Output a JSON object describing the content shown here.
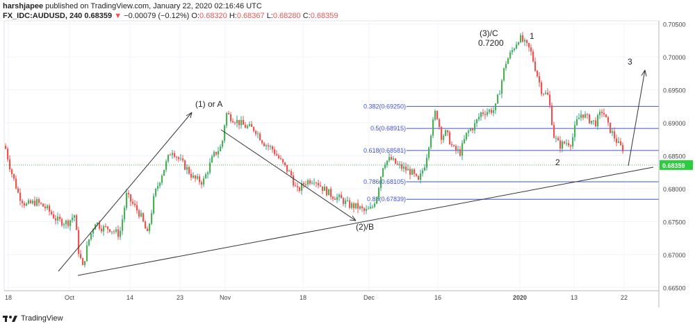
{
  "header": {
    "line1_user": "harshjapee",
    "line1_rest": " published on TradingView.com, January 22, 2020 02:16:46 UTC",
    "symbol": "FX_IDC:AUDUSD, 240",
    "last": "0.68359",
    "change_arrow": "▼",
    "change": "−0.00079 (−0.12%)",
    "o_label": "O:",
    "o_val": "0.68320",
    "h_label": "H:",
    "h_val": "0.68367",
    "l_label": "L:",
    "l_val": "0.68280",
    "c_label": "C:",
    "c_val": "0.68359"
  },
  "footer": {
    "brand": "TradingView"
  },
  "colors": {
    "up": "#26a69a",
    "up_fill": "#4caf50",
    "down": "#ef5350",
    "fib_line": "#3f51d4",
    "fib_text": "#3f51d4",
    "price_line": "#4caf50",
    "price_label_bg": "#2ecc40",
    "trend": "#333333"
  },
  "chart_data": {
    "type": "candlestick",
    "x_ticks": [
      "18",
      "Oct",
      "14",
      "23",
      "Nov",
      "18",
      "Dec",
      "16",
      "2020",
      "13",
      "22"
    ],
    "y_ticks": [
      "0.70500",
      "0.70000",
      "0.69500",
      "0.69000",
      "0.68500",
      "0.68000",
      "0.67500",
      "0.67000",
      "0.66500"
    ],
    "ylim": [
      0.6645,
      0.7055
    ],
    "current_price": "0.68359",
    "fib_levels": [
      {
        "label": "0.382(0.69250)",
        "value": 0.6925
      },
      {
        "label": "0.5(0.68915)",
        "value": 0.68915
      },
      {
        "label": "0.618(0.68581)",
        "value": 0.68581
      },
      {
        "label": "0.786(0.68105)",
        "value": 0.68105
      },
      {
        "label": "0.88(0.67839)",
        "value": 0.67839
      }
    ],
    "annotations": [
      {
        "text": "(1) or A"
      },
      {
        "text": "(2)/B"
      },
      {
        "text": "(3)/C"
      },
      {
        "text": "0.7200"
      },
      {
        "text": "1"
      },
      {
        "text": "2"
      },
      {
        "text": "3"
      }
    ],
    "close_path": [
      [
        0,
        0.6865
      ],
      [
        8,
        0.683
      ],
      [
        20,
        0.679
      ],
      [
        30,
        0.6775
      ],
      [
        45,
        0.678
      ],
      [
        60,
        0.677
      ],
      [
        75,
        0.6752
      ],
      [
        90,
        0.6748
      ],
      [
        100,
        0.676
      ],
      [
        106,
        0.6705
      ],
      [
        112,
        0.668
      ],
      [
        120,
        0.672
      ],
      [
        130,
        0.675
      ],
      [
        140,
        0.674
      ],
      [
        150,
        0.674
      ],
      [
        165,
        0.673
      ],
      [
        175,
        0.679
      ],
      [
        185,
        0.6775
      ],
      [
        195,
        0.676
      ],
      [
        205,
        0.673
      ],
      [
        215,
        0.679
      ],
      [
        225,
        0.682
      ],
      [
        240,
        0.686
      ],
      [
        250,
        0.6845
      ],
      [
        262,
        0.683
      ],
      [
        272,
        0.6815
      ],
      [
        285,
        0.681
      ],
      [
        300,
        0.685
      ],
      [
        312,
        0.6865
      ],
      [
        318,
        0.6915
      ],
      [
        323,
        0.691
      ],
      [
        330,
        0.6905
      ],
      [
        345,
        0.6895
      ],
      [
        360,
        0.689
      ],
      [
        372,
        0.687
      ],
      [
        385,
        0.686
      ],
      [
        398,
        0.684
      ],
      [
        412,
        0.682
      ],
      [
        420,
        0.6795
      ],
      [
        432,
        0.681
      ],
      [
        445,
        0.6815
      ],
      [
        458,
        0.68
      ],
      [
        470,
        0.679
      ],
      [
        482,
        0.6785
      ],
      [
        495,
        0.6775
      ],
      [
        508,
        0.6772
      ],
      [
        518,
        0.6765
      ],
      [
        528,
        0.677
      ],
      [
        535,
        0.679
      ],
      [
        545,
        0.684
      ],
      [
        555,
        0.6845
      ],
      [
        565,
        0.6835
      ],
      [
        575,
        0.683
      ],
      [
        585,
        0.6825
      ],
      [
        595,
        0.681
      ],
      [
        605,
        0.684
      ],
      [
        612,
        0.688
      ],
      [
        620,
        0.692
      ],
      [
        628,
        0.688
      ],
      [
        635,
        0.6885
      ],
      [
        645,
        0.686
      ],
      [
        655,
        0.6855
      ],
      [
        665,
        0.6885
      ],
      [
        675,
        0.6895
      ],
      [
        685,
        0.6915
      ],
      [
        695,
        0.6918
      ],
      [
        705,
        0.692
      ],
      [
        712,
        0.695
      ],
      [
        720,
        0.699
      ],
      [
        730,
        0.701
      ],
      [
        740,
        0.703
      ],
      [
        748,
        0.702
      ],
      [
        756,
        0.701
      ],
      [
        764,
        0.698
      ],
      [
        772,
        0.695
      ],
      [
        782,
        0.694
      ],
      [
        790,
        0.688
      ],
      [
        798,
        0.6865
      ],
      [
        806,
        0.687
      ],
      [
        815,
        0.687
      ],
      [
        822,
        0.69
      ],
      [
        830,
        0.6915
      ],
      [
        840,
        0.6905
      ],
      [
        850,
        0.69
      ],
      [
        860,
        0.692
      ],
      [
        868,
        0.6895
      ],
      [
        876,
        0.688
      ],
      [
        884,
        0.6865
      ],
      [
        890,
        0.686
      ],
      [
        896,
        0.6836
      ]
    ]
  }
}
